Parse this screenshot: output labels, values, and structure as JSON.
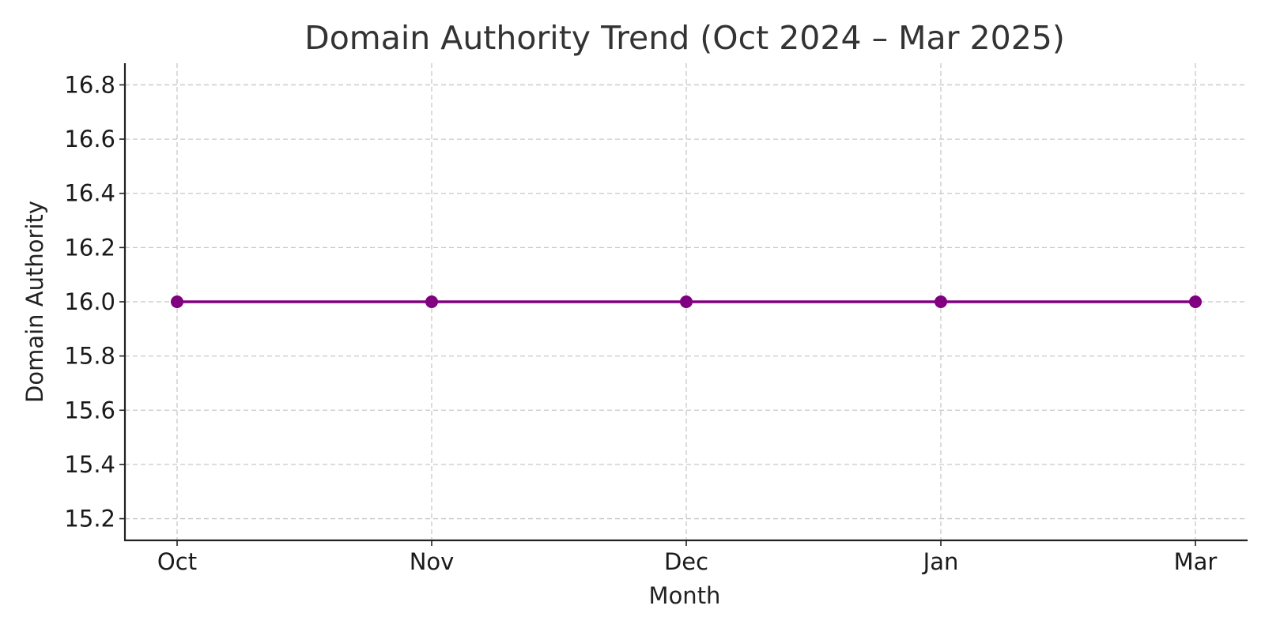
{
  "chart_data": {
    "type": "line",
    "title": "Domain Authority Trend (Oct 2024 – Mar 2025)",
    "xlabel": "Month",
    "ylabel": "Domain Authority",
    "categories": [
      "Oct",
      "Nov",
      "Dec",
      "Jan",
      "Mar"
    ],
    "series": [
      {
        "values": [
          16.0,
          16.0,
          16.0,
          16.0,
          16.0
        ],
        "color": "#800080",
        "marker": "circle"
      }
    ],
    "ylim": [
      15.12,
      16.88
    ],
    "yticks": [
      15.2,
      15.4,
      15.6,
      15.8,
      16.0,
      16.2,
      16.4,
      16.6,
      16.8
    ],
    "ytick_labels": [
      "15.2",
      "15.4",
      "15.6",
      "15.8",
      "16.0",
      "16.2",
      "16.4",
      "16.6",
      "16.8"
    ],
    "grid": true,
    "legend": "none"
  }
}
